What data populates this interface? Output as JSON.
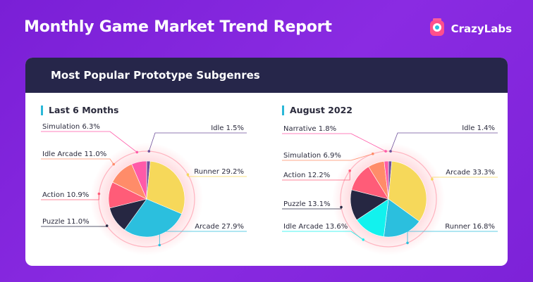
{
  "header": {
    "title": "Monthly Game Market Trend Report"
  },
  "brand": {
    "name": "CrazyLabs",
    "logo_icon": "crazylabs-logo-icon"
  },
  "card": {
    "title": "Most Popular Prototype Subgenres"
  },
  "chart_data": [
    {
      "type": "pie",
      "title": "Last 6 Months",
      "slices": [
        {
          "label": "Idle",
          "value": 1.5,
          "display": "Idle 1.5%",
          "color": "#6e4f9a"
        },
        {
          "label": "Runner",
          "value": 29.2,
          "display": "Runner 29.2%",
          "color": "#f6d85a"
        },
        {
          "label": "Arcade",
          "value": 27.9,
          "display": "Arcade 27.9%",
          "color": "#2bbfde"
        },
        {
          "label": "Puzzle",
          "value": 11.0,
          "display": "Puzzle 11.0%",
          "color": "#262742"
        },
        {
          "label": "Action",
          "value": 10.9,
          "display": "Action 10.9%",
          "color": "#ff5c78"
        },
        {
          "label": "Idle Arcade",
          "value": 11.0,
          "display": "Idle Arcade 11.0%",
          "color": "#ff8c69"
        },
        {
          "label": "Simulation",
          "value": 6.3,
          "display": "Simulation 6.3%",
          "color": "#ff5aa8"
        }
      ]
    },
    {
      "type": "pie",
      "title": "August 2022",
      "slices": [
        {
          "label": "Idle",
          "value": 1.4,
          "display": "Idle 1.4%",
          "color": "#6e4f9a"
        },
        {
          "label": "Arcade",
          "value": 33.3,
          "display": "Arcade 33.3%",
          "color": "#f6d85a"
        },
        {
          "label": "Runner",
          "value": 16.8,
          "display": "Runner 16.8%",
          "color": "#2bbfde"
        },
        {
          "label": "Idle Arcade",
          "value": 13.6,
          "display": "Idle Arcade 13.6%",
          "color": "#12f2ee"
        },
        {
          "label": "Puzzle",
          "value": 13.1,
          "display": "Puzzle 13.1%",
          "color": "#262742"
        },
        {
          "label": "Action",
          "value": 12.2,
          "display": "Action 12.2%",
          "color": "#ff5c78"
        },
        {
          "label": "Simulation",
          "value": 6.9,
          "display": "Simulation 6.9%",
          "color": "#ff8c69"
        },
        {
          "label": "Narrative",
          "value": 1.8,
          "display": "Narrative 1.8%",
          "color": "#ff5aa8"
        }
      ]
    }
  ]
}
